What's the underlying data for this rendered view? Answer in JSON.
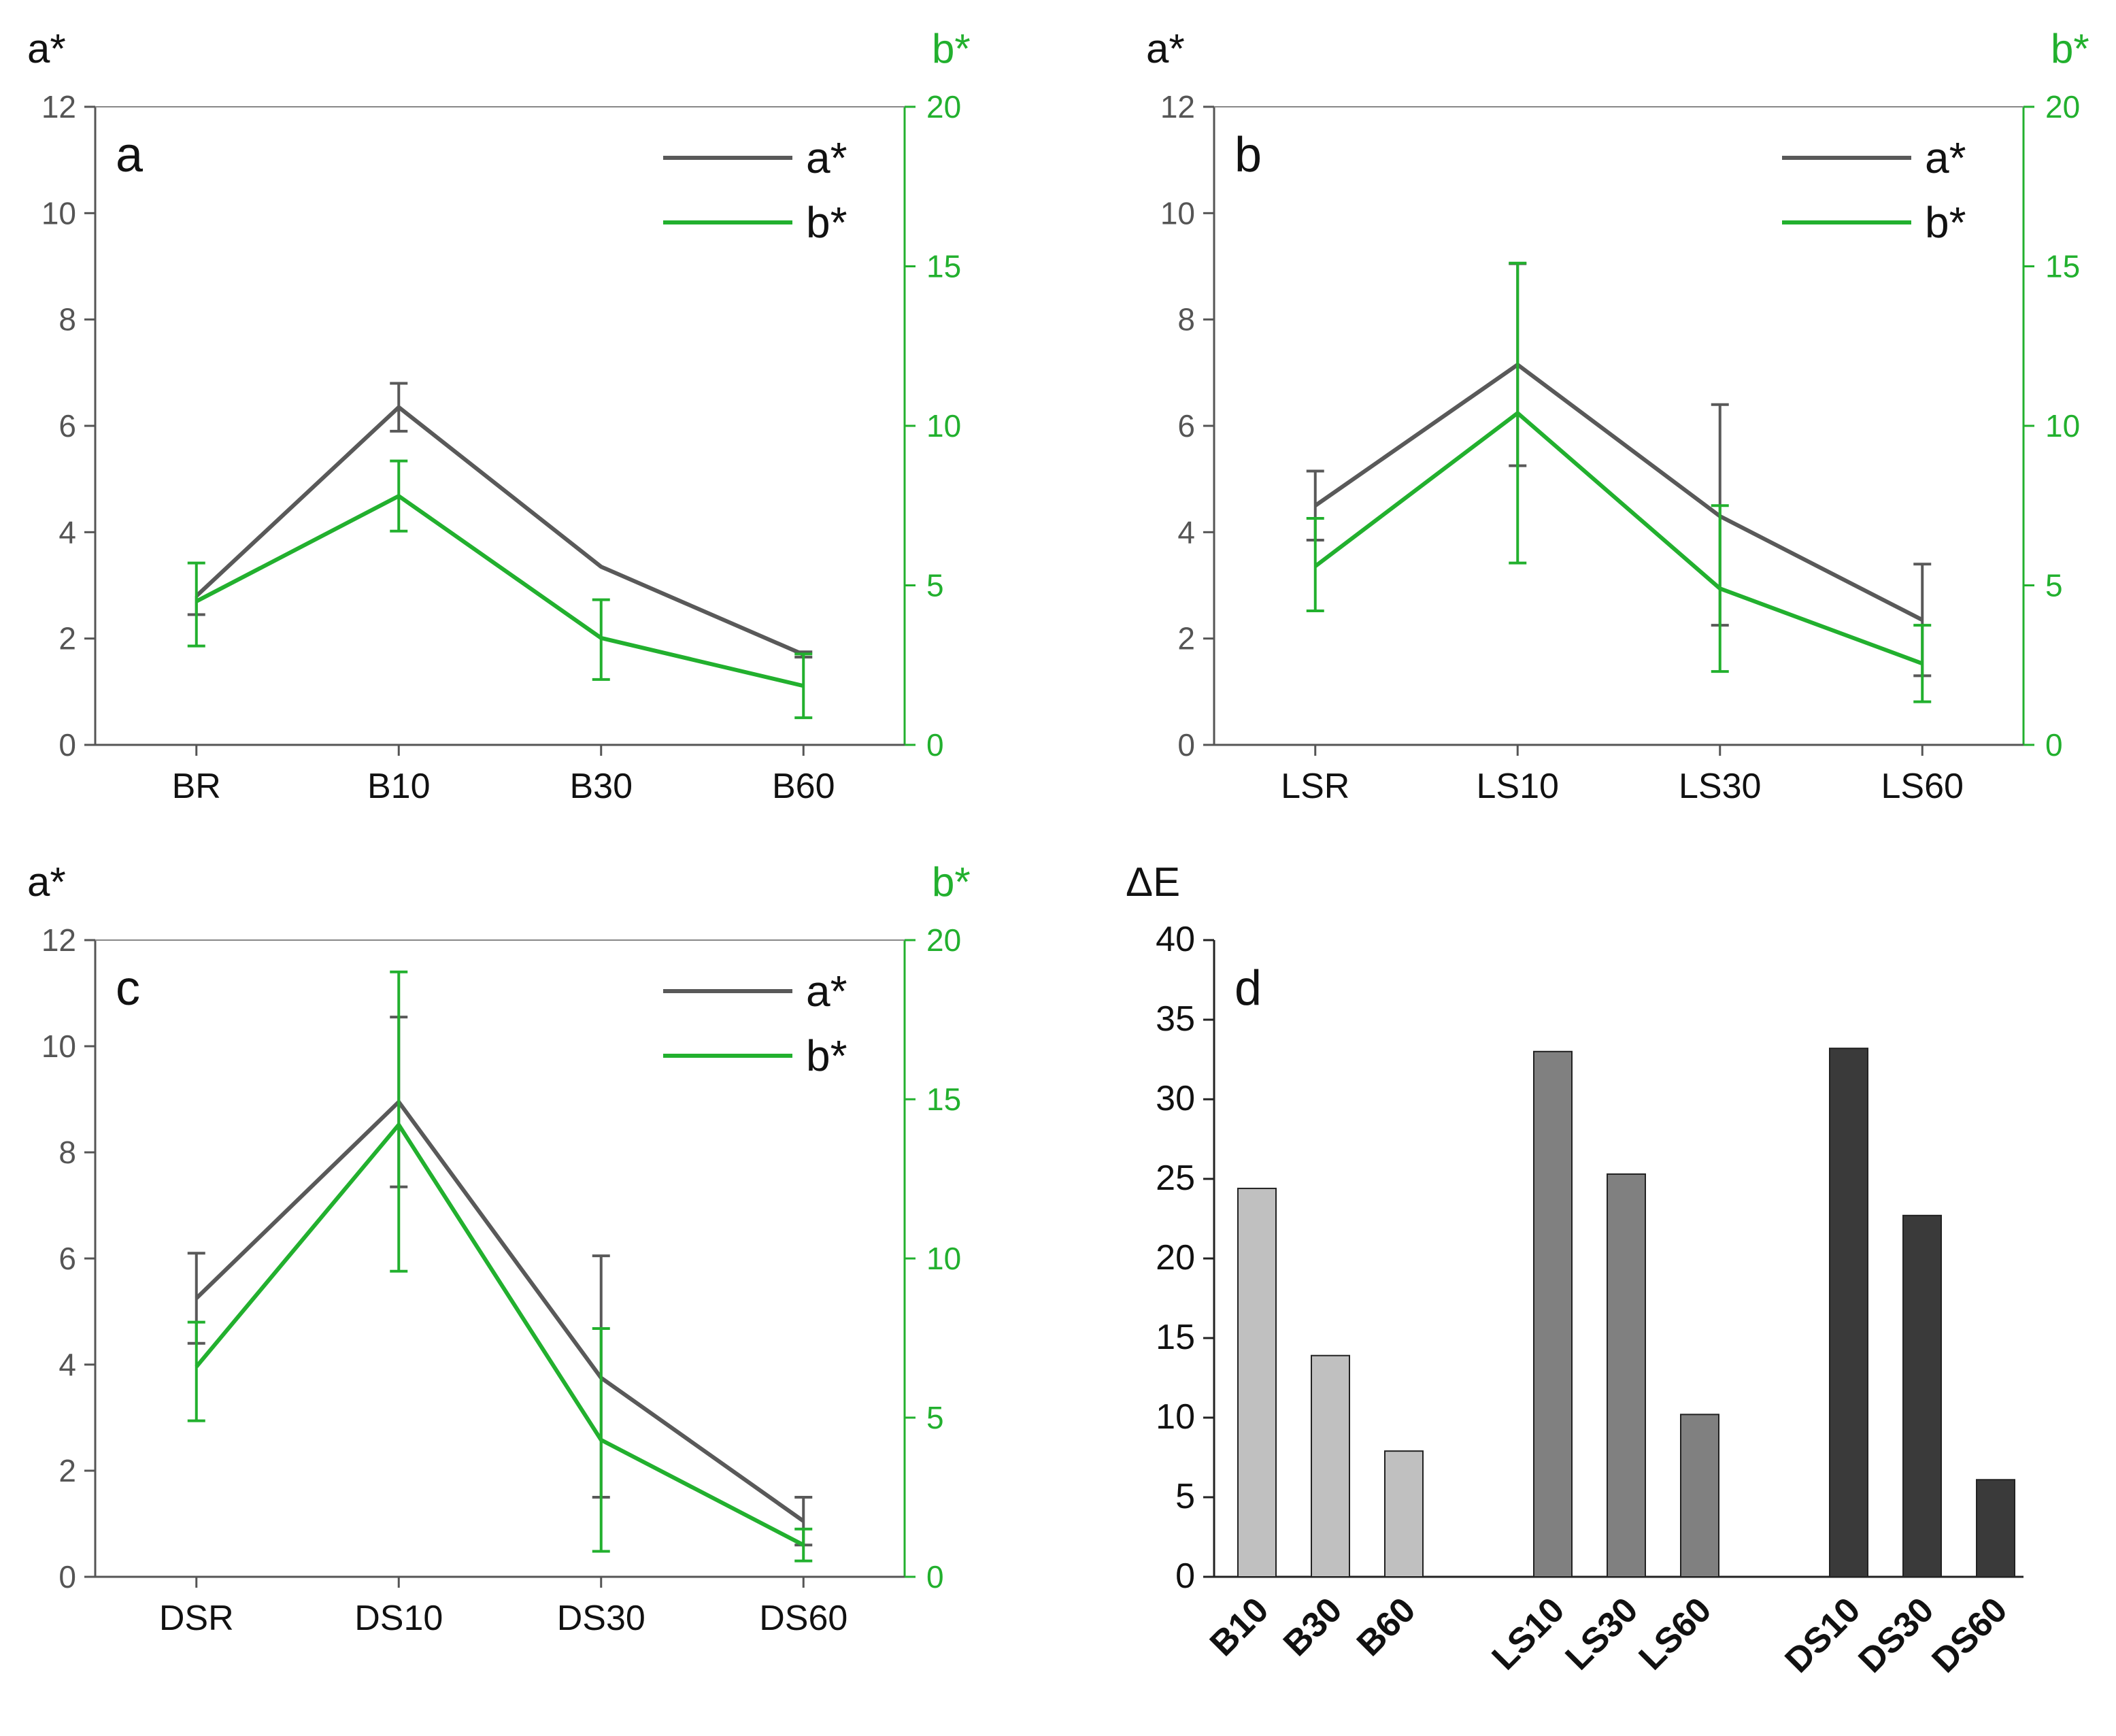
{
  "colors": {
    "a_line": "#595959",
    "b_line": "#22b02e",
    "axis_left": "#555555",
    "axis_right": "#22b02e",
    "bar_b": "#c0c0c0",
    "bar_ls": "#808080",
    "bar_ds": "#3a3a3a"
  },
  "chart_data": [
    {
      "type": "line",
      "panel": "a",
      "categories": [
        "BR",
        "B10",
        "B30",
        "B60"
      ],
      "left_axis_title": "a*",
      "right_axis_title": "b*",
      "ylim_left": [
        0,
        12
      ],
      "ylim_right": [
        0,
        20
      ],
      "left_ticks": [
        "0",
        "2",
        "4",
        "6",
        "8",
        "10",
        "12"
      ],
      "right_ticks": [
        "0",
        "5",
        "10",
        "15",
        "20"
      ],
      "legend": [
        "a*",
        "b*"
      ],
      "series": [
        {
          "name": "a*",
          "axis": "left",
          "values": [
            2.8,
            6.35,
            3.35,
            1.7
          ],
          "err_low": [
            0.35,
            0.45,
            0,
            0.05
          ],
          "err_high": [
            0,
            0.45,
            0,
            0.05
          ]
        },
        {
          "name": "b*",
          "axis": "right",
          "values": [
            4.5,
            7.8,
            3.35,
            1.85
          ],
          "err_low": [
            1.4,
            1.1,
            1.3,
            1.0
          ],
          "err_high": [
            1.2,
            1.1,
            1.2,
            1.0
          ]
        }
      ]
    },
    {
      "type": "line",
      "panel": "b",
      "categories": [
        "LSR",
        "LS10",
        "LS30",
        "LS60"
      ],
      "left_axis_title": "a*",
      "right_axis_title": "b*",
      "ylim_left": [
        0,
        12
      ],
      "ylim_right": [
        0,
        20
      ],
      "left_ticks": [
        "0",
        "2",
        "4",
        "6",
        "8",
        "10",
        "12"
      ],
      "right_ticks": [
        "0",
        "5",
        "10",
        "15",
        "20"
      ],
      "legend": [
        "a*",
        "b*"
      ],
      "series": [
        {
          "name": "a*",
          "axis": "left",
          "values": [
            4.5,
            7.15,
            4.3,
            2.35
          ],
          "err_low": [
            0.65,
            1.9,
            2.05,
            1.05
          ],
          "err_high": [
            0.65,
            1.9,
            2.1,
            1.05
          ]
        },
        {
          "name": "b*",
          "axis": "right",
          "values": [
            5.6,
            10.4,
            4.9,
            2.55
          ],
          "err_low": [
            1.4,
            4.7,
            2.6,
            1.2
          ],
          "err_high": [
            1.5,
            4.7,
            2.6,
            1.2
          ]
        }
      ]
    },
    {
      "type": "line",
      "panel": "c",
      "categories": [
        "DSR",
        "DS10",
        "DS30",
        "DS60"
      ],
      "left_axis_title": "a*",
      "right_axis_title": "b*",
      "ylim_left": [
        0,
        12
      ],
      "ylim_right": [
        0,
        20
      ],
      "left_ticks": [
        "0",
        "2",
        "4",
        "6",
        "8",
        "10",
        "12"
      ],
      "right_ticks": [
        "0",
        "5",
        "10",
        "15",
        "20"
      ],
      "legend": [
        "a*",
        "b*"
      ],
      "series": [
        {
          "name": "a*",
          "axis": "left",
          "values": [
            5.25,
            8.95,
            3.75,
            1.05
          ],
          "err_low": [
            0.85,
            1.6,
            2.25,
            0.45
          ],
          "err_high": [
            0.85,
            1.6,
            2.3,
            0.45
          ]
        },
        {
          "name": "b*",
          "axis": "right",
          "values": [
            6.6,
            14.2,
            4.3,
            1.0
          ],
          "err_low": [
            1.7,
            4.6,
            3.5,
            0.5
          ],
          "err_high": [
            1.4,
            4.8,
            3.5,
            0.5
          ]
        }
      ]
    },
    {
      "type": "bar",
      "panel": "d",
      "ylabel": "ΔE",
      "ylim": [
        0,
        40
      ],
      "y_ticks": [
        "0",
        "5",
        "10",
        "15",
        "20",
        "25",
        "30",
        "35",
        "40"
      ],
      "groups": [
        {
          "name": "B",
          "categories": [
            "B10",
            "B30",
            "B60"
          ],
          "values": [
            24.4,
            13.9,
            7.9
          ]
        },
        {
          "name": "LS",
          "categories": [
            "LS10",
            "LS30",
            "LS60"
          ],
          "values": [
            33.0,
            25.3,
            10.2
          ]
        },
        {
          "name": "DS",
          "categories": [
            "DS10",
            "DS30",
            "DS60"
          ],
          "values": [
            33.2,
            22.7,
            6.1
          ]
        }
      ]
    }
  ]
}
